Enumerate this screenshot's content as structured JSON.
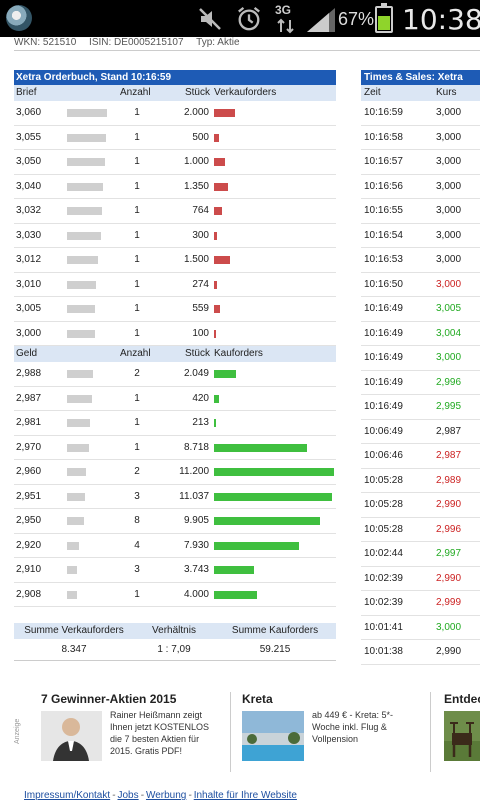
{
  "status_bar": {
    "battery_percent": "67%",
    "clock": "10:38",
    "network_label": "3G"
  },
  "info": {
    "wkn": "WKN: 521510",
    "isin": "ISIN: DE0005215107",
    "typ": "Typ: Aktie"
  },
  "orderbook": {
    "title": "Xetra Orderbuch, Stand 10:16:59",
    "ask_header": {
      "price": "Brief",
      "anzahl": "Anzahl",
      "stueck": "Stück",
      "orders": "Verkauforders"
    },
    "asks": [
      {
        "price": "3,060",
        "anzahl": "1",
        "stueck": "2.000",
        "depth": 0.86,
        "volume": 2000
      },
      {
        "price": "3,055",
        "anzahl": "1",
        "stueck": "500",
        "depth": 0.83,
        "volume": 500
      },
      {
        "price": "3,050",
        "anzahl": "1",
        "stueck": "1.000",
        "depth": 0.8,
        "volume": 1000
      },
      {
        "price": "3,040",
        "anzahl": "1",
        "stueck": "1.350",
        "depth": 0.74,
        "volume": 1350
      },
      {
        "price": "3,032",
        "anzahl": "1",
        "stueck": "764",
        "depth": 0.71,
        "volume": 764
      },
      {
        "price": "3,030",
        "anzahl": "1",
        "stueck": "300",
        "depth": 0.69,
        "volume": 300
      },
      {
        "price": "3,012",
        "anzahl": "1",
        "stueck": "1.500",
        "depth": 0.6,
        "volume": 1500
      },
      {
        "price": "3,010",
        "anzahl": "1",
        "stueck": "274",
        "depth": 0.55,
        "volume": 274
      },
      {
        "price": "3,005",
        "anzahl": "1",
        "stueck": "559",
        "depth": 0.52,
        "volume": 559
      },
      {
        "price": "3,000",
        "anzahl": "1",
        "stueck": "100",
        "depth": 0.5,
        "volume": 100
      }
    ],
    "bid_header": {
      "price": "Geld",
      "anzahl": "Anzahl",
      "stueck": "Stück",
      "orders": "Kauforders"
    },
    "bids": [
      {
        "price": "2,988",
        "anzahl": "2",
        "stueck": "2.049",
        "depth": 0.45,
        "volume": 2049
      },
      {
        "price": "2,987",
        "anzahl": "1",
        "stueck": "420",
        "depth": 0.42,
        "volume": 420
      },
      {
        "price": "2,981",
        "anzahl": "1",
        "stueck": "213",
        "depth": 0.38,
        "volume": 213
      },
      {
        "price": "2,970",
        "anzahl": "1",
        "stueck": "8.718",
        "depth": 0.33,
        "volume": 8718
      },
      {
        "price": "2,960",
        "anzahl": "2",
        "stueck": "11.200",
        "depth": 0.27,
        "volume": 11200
      },
      {
        "price": "2,951",
        "anzahl": "3",
        "stueck": "11.037",
        "depth": 0.22,
        "volume": 11037
      },
      {
        "price": "2,950",
        "anzahl": "8",
        "stueck": "9.905",
        "depth": 0.2,
        "volume": 9905
      },
      {
        "price": "2,920",
        "anzahl": "4",
        "stueck": "7.930",
        "depth": 0.05,
        "volume": 7930
      },
      {
        "price": "2,910",
        "anzahl": "3",
        "stueck": "3.743",
        "depth": 0.0,
        "volume": 3743
      },
      {
        "price": "2,908",
        "anzahl": "1",
        "stueck": "4.000",
        "depth": 0.0,
        "volume": 4000
      }
    ],
    "max_volume": 11200,
    "summary": {
      "header_sell": "Summe Verkauforders",
      "header_ratio": "Verhältnis",
      "header_buy": "Summe Kauforders",
      "sell": "8.347",
      "ratio": "1 : 7,09",
      "buy": "59.215"
    }
  },
  "times_sales": {
    "title": "Times & Sales: Xetra",
    "header": {
      "time": "Zeit",
      "kurs": "Kurs"
    },
    "rows": [
      {
        "time": "10:16:59",
        "kurs": "3,000",
        "dir": "neutral"
      },
      {
        "time": "10:16:58",
        "kurs": "3,000",
        "dir": "neutral"
      },
      {
        "time": "10:16:57",
        "kurs": "3,000",
        "dir": "neutral"
      },
      {
        "time": "10:16:56",
        "kurs": "3,000",
        "dir": "neutral"
      },
      {
        "time": "10:16:55",
        "kurs": "3,000",
        "dir": "neutral"
      },
      {
        "time": "10:16:54",
        "kurs": "3,000",
        "dir": "neutral"
      },
      {
        "time": "10:16:53",
        "kurs": "3,000",
        "dir": "neutral"
      },
      {
        "time": "10:16:50",
        "kurs": "3,000",
        "dir": "down"
      },
      {
        "time": "10:16:49",
        "kurs": "3,005",
        "dir": "up"
      },
      {
        "time": "10:16:49",
        "kurs": "3,004",
        "dir": "up"
      },
      {
        "time": "10:16:49",
        "kurs": "3,000",
        "dir": "up"
      },
      {
        "time": "10:16:49",
        "kurs": "2,996",
        "dir": "up"
      },
      {
        "time": "10:16:49",
        "kurs": "2,995",
        "dir": "up"
      },
      {
        "time": "10:06:49",
        "kurs": "2,987",
        "dir": "neutral"
      },
      {
        "time": "10:06:46",
        "kurs": "2,987",
        "dir": "down"
      },
      {
        "time": "10:05:28",
        "kurs": "2,989",
        "dir": "down"
      },
      {
        "time": "10:05:28",
        "kurs": "2,990",
        "dir": "down"
      },
      {
        "time": "10:05:28",
        "kurs": "2,996",
        "dir": "down"
      },
      {
        "time": "10:02:44",
        "kurs": "2,997",
        "dir": "up"
      },
      {
        "time": "10:02:39",
        "kurs": "2,990",
        "dir": "down"
      },
      {
        "time": "10:02:39",
        "kurs": "2,999",
        "dir": "down"
      },
      {
        "time": "10:01:41",
        "kurs": "3,000",
        "dir": "up"
      },
      {
        "time": "10:01:38",
        "kurs": "2,990",
        "dir": "neutral"
      }
    ]
  },
  "colors": {
    "header_blue": "#1e5bb5",
    "sell_red": "#cc4b4b",
    "buy_green": "#3fbf3f",
    "up_text": "#22aa22",
    "down_text": "#cc2222"
  },
  "ads": {
    "label": "Anzeige",
    "items": [
      {
        "title": "7 Gewinner-Aktien 2015",
        "text": "Rainer Heißmann zeigt Ihnen jetzt KOSTENLOS die 7 besten Aktien für 2015. Gratis PDF!",
        "icon": "portrait-photo-icon"
      },
      {
        "title": "Kreta",
        "text": "ab 449 € - Kreta: 5*-Woche inkl. Flug & Vollpension",
        "icon": "hotel-pool-photo-icon"
      },
      {
        "title": "Entdec",
        "text": "",
        "icon": "moose-photo-icon"
      }
    ]
  },
  "footer": {
    "links": [
      "Impressum/Kontakt",
      "Jobs",
      "Werbung",
      "Inhalte für Ihre Website"
    ]
  }
}
